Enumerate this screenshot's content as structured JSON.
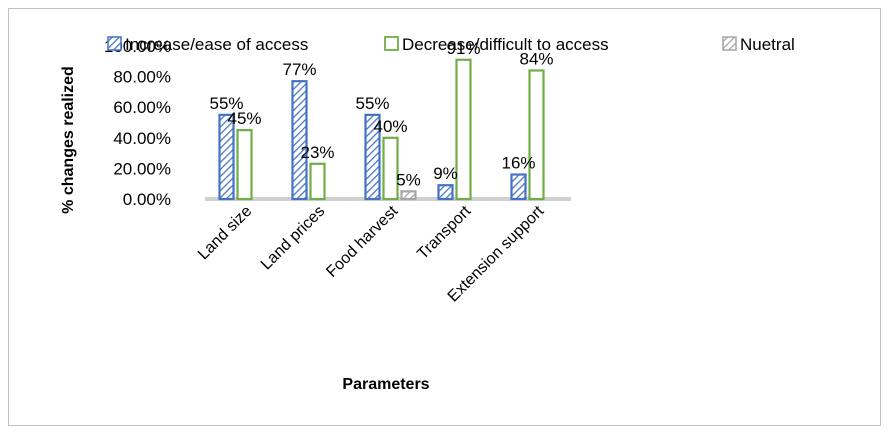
{
  "chart_data": {
    "type": "bar",
    "xlabel": "Parameters",
    "ylabel": "% changes realized",
    "categories": [
      "Land size",
      "Land prices",
      "Food harvest",
      "Transport",
      "Extension support"
    ],
    "ylim": [
      0,
      1
    ],
    "yticks": [
      "0.00%",
      "20.00%",
      "40.00%",
      "60.00%",
      "80.00%",
      "100.00%"
    ],
    "series": [
      {
        "name": "Increase/ease of access",
        "values": [
          0.55,
          0.77,
          0.55,
          0.09,
          0.16
        ],
        "labels": [
          "55%",
          "77%",
          "55%",
          "9%",
          "16%"
        ],
        "color": "#4472c4",
        "pattern": "diagonal-hatch"
      },
      {
        "name": "Decrease/difficult to access",
        "values": [
          0.45,
          0.23,
          0.4,
          0.91,
          0.84
        ],
        "labels": [
          "45%",
          "23%",
          "40%",
          "91%",
          "84%"
        ],
        "color": "#70ad47",
        "pattern": "outline"
      },
      {
        "name": "Nuetral",
        "values": [
          null,
          null,
          0.05,
          null,
          null
        ],
        "labels": [
          "",
          "",
          "5%",
          "",
          ""
        ],
        "color": "#a5a5a5",
        "pattern": "diagonal-hatch"
      }
    ],
    "legend_position": "top",
    "grid": false
  }
}
